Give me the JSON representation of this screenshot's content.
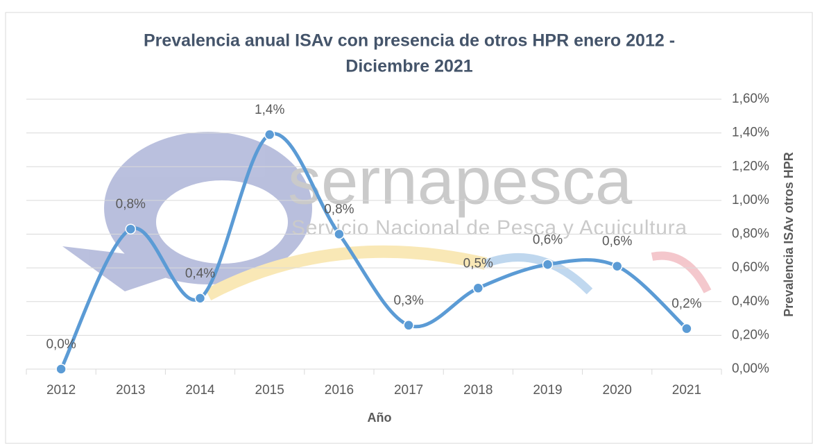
{
  "chart_data": {
    "type": "line",
    "title": "Prevalencia anual ISAv con presencia de otros HPR enero 2012 -",
    "title_line2": "Diciembre 2021",
    "x_label": "Año",
    "y_label": "Prevalencia ISAv otros HPR",
    "y_axis_side": "right",
    "categories": [
      "2012",
      "2013",
      "2014",
      "2015",
      "2016",
      "2017",
      "2018",
      "2019",
      "2020",
      "2021"
    ],
    "series": [
      {
        "name": "Prevalencia ISAv otros HPR",
        "color": "#5b9bd5",
        "values": [
          0.0,
          0.83,
          0.42,
          1.39,
          0.8,
          0.26,
          0.48,
          0.62,
          0.61,
          0.24
        ],
        "value_labels": [
          "0,0%",
          "0,8%",
          "0,4%",
          "1,4%",
          "0,8%",
          "0,3%",
          "0,5%",
          "0,6%",
          "0,6%",
          "0,2%"
        ]
      }
    ],
    "ylim": [
      0,
      1.6
    ],
    "yticks": [
      {
        "value": 0,
        "label": "0,00%"
      },
      {
        "value": 0.2,
        "label": "0,20%"
      },
      {
        "value": 0.4,
        "label": "0,40%"
      },
      {
        "value": 0.6,
        "label": "0,60%"
      },
      {
        "value": 0.8,
        "label": "0,80%"
      },
      {
        "value": 1.0,
        "label": "1,00%"
      },
      {
        "value": 1.2,
        "label": "1,20%"
      },
      {
        "value": 1.4,
        "label": "1,40%"
      },
      {
        "value": 1.6,
        "label": "1,60%"
      }
    ],
    "grid": true,
    "smooth": true,
    "watermark": {
      "name": "sernapesca",
      "tagline": "Servicio Nacional de Pesca y Acuicultura"
    }
  }
}
